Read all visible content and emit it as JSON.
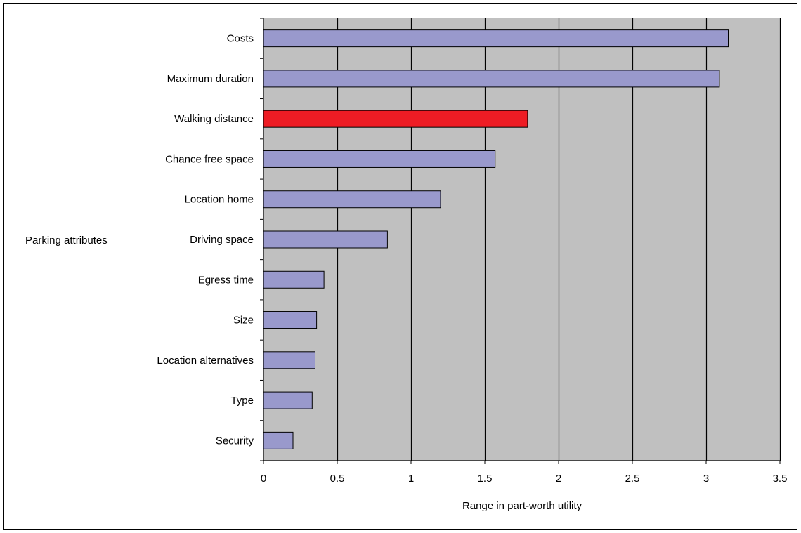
{
  "chart_data": {
    "type": "bar",
    "orientation": "horizontal",
    "title": "",
    "xlabel": "Range in part-worth utility",
    "ylabel": "Parking attributes",
    "categories": [
      "Costs",
      "Maximum duration",
      "Walking distance",
      "Chance free space",
      "Location home",
      "Driving space",
      "Egress time",
      "Size",
      "Location alternatives",
      "Type",
      "Security"
    ],
    "values": [
      3.15,
      3.09,
      1.79,
      1.57,
      1.2,
      0.84,
      0.41,
      0.36,
      0.35,
      0.33,
      0.2
    ],
    "xlim": [
      0,
      3.5
    ],
    "xticks": [
      0,
      0.5,
      1,
      1.5,
      2,
      2.5,
      3,
      3.5
    ],
    "xtick_labels": [
      "0",
      "0.5",
      "1",
      "1.5",
      "2",
      "2.5",
      "3",
      "3.5"
    ],
    "grid": "vertical",
    "legend": "none",
    "colors": {
      "bar": "#9999cc",
      "highlight": "#ee1c24",
      "plot_background": "#c0c0c0",
      "gridline": "#000000"
    },
    "highlighted_category": "Walking distance"
  }
}
